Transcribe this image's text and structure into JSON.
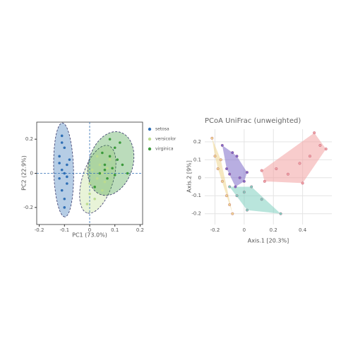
{
  "chart_data": [
    {
      "type": "scatter",
      "enclosure": "ellipse",
      "zero_lines": true,
      "grid": false,
      "xlabel": "PC1 (73.0%)",
      "ylabel": "PC2 (22.9%)",
      "xlim": [
        -0.21,
        0.21
      ],
      "ylim": [
        -0.3,
        0.3
      ],
      "xticks": [
        -0.2,
        -0.1,
        0,
        0.1,
        0.2
      ],
      "yticks": [
        -0.2,
        0,
        0.2
      ],
      "series": [
        {
          "name": "setosa",
          "color": "#2f6fb5",
          "x": [
            -0.11,
            -0.1,
            -0.12,
            -0.09,
            -0.11,
            -0.1,
            -0.12,
            -0.09,
            -0.11,
            -0.1,
            -0.12,
            -0.08,
            -0.1,
            -0.11,
            -0.09
          ],
          "y": [
            0.22,
            0.15,
            0.1,
            0.05,
            0.02,
            0.0,
            -0.03,
            -0.06,
            -0.1,
            -0.15,
            0.06,
            0.08,
            -0.2,
            0.18,
            -0.02
          ]
        },
        {
          "name": "versicolor",
          "color": "#bcdc8f",
          "x": [
            -0.01,
            0.0,
            0.02,
            0.03,
            0.05,
            0.01,
            0.04,
            0.06,
            0.08,
            0.02,
            0.0,
            0.07,
            0.03,
            0.05
          ],
          "y": [
            -0.18,
            -0.12,
            -0.08,
            -0.03,
            0.0,
            0.02,
            0.05,
            -0.05,
            0.08,
            -0.15,
            -0.06,
            0.03,
            0.1,
            -0.1
          ]
        },
        {
          "name": "virginica",
          "color": "#3c9a3c",
          "x": [
            0.02,
            0.04,
            0.06,
            0.08,
            0.1,
            0.12,
            0.09,
            0.07,
            0.11,
            0.05,
            0.13,
            0.08,
            0.1,
            0.15,
            0.06
          ],
          "y": [
            -0.08,
            0.0,
            0.05,
            0.1,
            0.15,
            0.18,
            0.03,
            -0.03,
            0.08,
            0.12,
            0.05,
            0.2,
            -0.01,
            0.0,
            0.02
          ]
        }
      ]
    },
    {
      "type": "scatter",
      "enclosure": "hull",
      "zero_lines": false,
      "grid": true,
      "title": "PCoA UniFrac (unweighted)",
      "xlabel": "Axis.1 [20.3%]",
      "ylabel": "Axis.2 [9%]",
      "xlim": [
        -0.27,
        0.6
      ],
      "ylim": [
        -0.26,
        0.27
      ],
      "xticks": [
        -0.2,
        0,
        0.2,
        0.4
      ],
      "yticks": [
        -0.2,
        -0.1,
        0,
        0.1,
        0.2
      ],
      "series": [
        {
          "color": "#f2a3a3",
          "x": [
            0.12,
            0.14,
            0.22,
            0.3,
            0.4,
            0.48,
            0.56,
            0.52,
            0.38,
            0.45
          ],
          "y": [
            0.04,
            -0.02,
            0.05,
            0.02,
            -0.03,
            0.25,
            0.16,
            0.18,
            0.08,
            0.12
          ]
        },
        {
          "color": "#7d6cc8",
          "x": [
            -0.15,
            -0.08,
            -0.05,
            -0.12,
            0.0,
            -0.03,
            -0.1,
            0.02,
            -0.06
          ],
          "y": [
            0.18,
            0.14,
            0.12,
            0.05,
            -0.02,
            0.0,
            0.02,
            0.03,
            -0.05
          ]
        },
        {
          "color": "#efd58e",
          "x": [
            -0.22,
            -0.2,
            -0.18,
            -0.15,
            -0.12,
            -0.08,
            -0.1,
            -0.16
          ],
          "y": [
            0.22,
            0.12,
            0.05,
            -0.02,
            -0.1,
            -0.2,
            -0.15,
            0.1
          ]
        },
        {
          "color": "#80d0c0",
          "x": [
            -0.1,
            0.0,
            0.05,
            0.12,
            0.25,
            0.02,
            -0.05
          ],
          "y": [
            -0.05,
            -0.08,
            -0.05,
            -0.12,
            -0.2,
            -0.18,
            -0.1
          ]
        }
      ]
    }
  ]
}
